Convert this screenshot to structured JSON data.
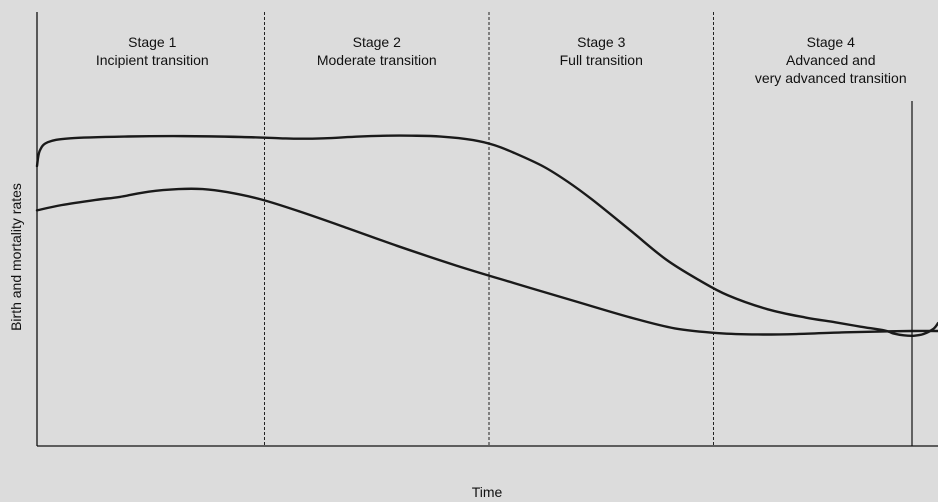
{
  "chart_data": {
    "type": "line",
    "title": "",
    "xlabel": "Time",
    "ylabel": "Birth and mortality rates",
    "x_ticks": "none",
    "y_ticks": "none",
    "grid": false,
    "legend": "none",
    "colors": {
      "background": "#dcdcdc",
      "line": "#1a1a1a",
      "axis": "#111111"
    },
    "stages": [
      {
        "label": "Stage 1",
        "name": "Incipient transition"
      },
      {
        "label": "Stage 2",
        "name": "Moderate transition"
      },
      {
        "label": "Stage 3",
        "name": "Full transition"
      },
      {
        "label": "Stage 4",
        "name": "Advanced and",
        "name_line2": "very advanced transition"
      }
    ],
    "note": "Schematic chart without numeric axes: each curve value is given as a relative rate level from 0 (bottom of axis) to 1 (top of axis), sampled along Time (0 to 1).",
    "series": [
      {
        "values": [
          [
            0.0,
            0.645
          ],
          [
            0.003,
            0.68
          ],
          [
            0.012,
            0.7
          ],
          [
            0.037,
            0.709
          ],
          [
            0.097,
            0.713
          ],
          [
            0.162,
            0.714
          ],
          [
            0.227,
            0.712
          ],
          [
            0.27,
            0.709
          ],
          [
            0.292,
            0.708
          ],
          [
            0.319,
            0.709
          ],
          [
            0.357,
            0.713
          ],
          [
            0.389,
            0.715
          ],
          [
            0.416,
            0.715
          ],
          [
            0.448,
            0.713
          ],
          [
            0.484,
            0.705
          ],
          [
            0.508,
            0.693
          ],
          [
            0.53,
            0.675
          ],
          [
            0.562,
            0.644
          ],
          [
            0.589,
            0.609
          ],
          [
            0.616,
            0.568
          ],
          [
            0.659,
            0.496
          ],
          [
            0.698,
            0.43
          ],
          [
            0.735,
            0.382
          ],
          [
            0.767,
            0.347
          ],
          [
            0.811,
            0.315
          ],
          [
            0.853,
            0.296
          ],
          [
            0.886,
            0.285
          ],
          [
            0.914,
            0.275
          ],
          [
            0.941,
            0.266
          ],
          [
            0.951,
            0.259
          ],
          [
            0.962,
            0.255
          ],
          [
            0.973,
            0.254
          ],
          [
            0.984,
            0.258
          ],
          [
            0.995,
            0.27
          ],
          [
            1.0,
            0.283
          ]
        ]
      },
      {
        "values": [
          [
            0.0,
            0.543
          ],
          [
            0.027,
            0.555
          ],
          [
            0.065,
            0.567
          ],
          [
            0.092,
            0.574
          ],
          [
            0.124,
            0.586
          ],
          [
            0.157,
            0.592
          ],
          [
            0.184,
            0.592
          ],
          [
            0.211,
            0.585
          ],
          [
            0.249,
            0.568
          ],
          [
            0.292,
            0.54
          ],
          [
            0.346,
            0.501
          ],
          [
            0.4,
            0.461
          ],
          [
            0.465,
            0.416
          ],
          [
            0.53,
            0.375
          ],
          [
            0.595,
            0.335
          ],
          [
            0.659,
            0.296
          ],
          [
            0.708,
            0.271
          ],
          [
            0.757,
            0.26
          ],
          [
            0.8,
            0.257
          ],
          [
            0.843,
            0.258
          ],
          [
            0.897,
            0.262
          ],
          [
            0.941,
            0.264
          ],
          [
            0.973,
            0.265
          ],
          [
            1.0,
            0.265
          ]
        ]
      }
    ]
  }
}
